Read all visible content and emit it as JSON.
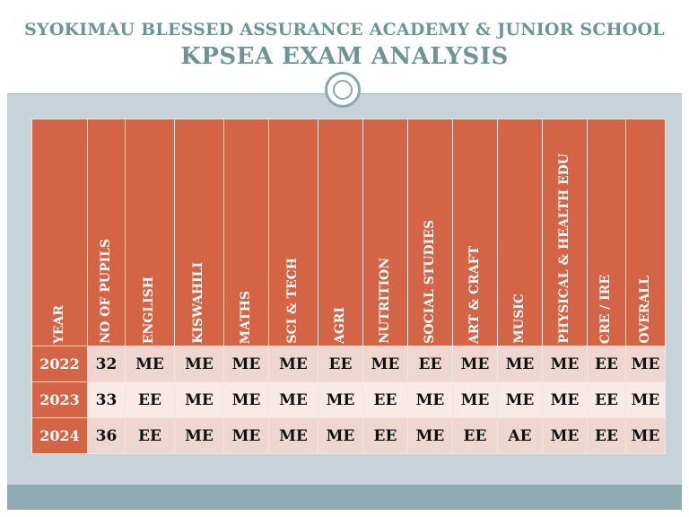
{
  "header": {
    "school": "SYOKIMAU BLESSED ASSURANCE ACADEMY & JUNIOR SCHOOL",
    "title": "KPSEA EXAM ANALYSIS"
  },
  "table": {
    "columns": [
      "YEAR",
      "NO OF PUPILS",
      "ENGLISH",
      "KISWAHILI",
      "MATHS",
      "SCI & TECH",
      "AGRI",
      "NUTRITION",
      "SOCIAL STUDIES",
      "ART & CRAFT",
      "MUSIC",
      "PHYSICAL & HEALTH EDU",
      "CRE / IRE",
      "OVERALL"
    ],
    "rows": [
      [
        "2022",
        "32",
        "ME",
        "ME",
        "ME",
        "ME",
        "EE",
        "ME",
        "EE",
        "ME",
        "ME",
        "ME",
        "EE",
        "ME"
      ],
      [
        "2023",
        "33",
        "EE",
        "ME",
        "ME",
        "ME",
        "ME",
        "EE",
        "ME",
        "ME",
        "ME",
        "ME",
        "EE",
        "ME"
      ],
      [
        "2024",
        "36",
        "EE",
        "ME",
        "ME",
        "ME",
        "ME",
        "EE",
        "ME",
        "EE",
        "AE",
        "ME",
        "EE",
        "ME"
      ]
    ]
  },
  "colors": {
    "header_text": "#6f9496",
    "table_header": "#d36446",
    "frame": "#c7d3d9",
    "bottom_bar": "#8fabaf"
  }
}
